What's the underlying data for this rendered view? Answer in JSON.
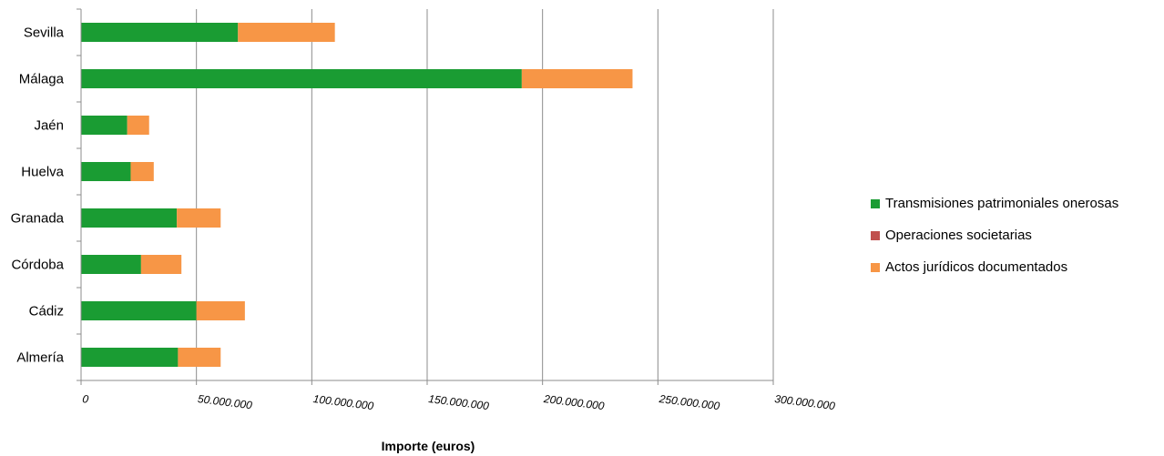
{
  "chart_data": {
    "type": "bar",
    "orientation": "horizontal",
    "stacked": true,
    "categories": [
      "Almería",
      "Cádiz",
      "Córdoba",
      "Granada",
      "Huelva",
      "Jaén",
      "Málaga",
      "Sevilla"
    ],
    "series": [
      {
        "name": "Transmisiones patrimoniales onerosas",
        "color": "#1a9c33",
        "values": [
          42000000,
          50000000,
          26000000,
          41500000,
          21500000,
          20000000,
          191000000,
          68000000
        ]
      },
      {
        "name": "Operaciones societarias",
        "color": "#c0504d",
        "values": [
          0,
          0,
          0,
          0,
          0,
          0,
          0,
          0
        ]
      },
      {
        "name": "Actos jurídicos documentados",
        "color": "#f79646",
        "values": [
          18500000,
          21000000,
          17500000,
          19000000,
          10000000,
          9500000,
          48000000,
          42000000
        ]
      }
    ],
    "xlim": [
      0,
      300000000
    ],
    "xticks": [
      "0",
      "50.000.000",
      "100.000.000",
      "150.000.000",
      "200.000.000",
      "250.000.000",
      "300.000.000"
    ],
    "xlabel": "Importe (euros)",
    "ylabel": "",
    "title": "",
    "grid": "vertical",
    "legend": "right"
  }
}
